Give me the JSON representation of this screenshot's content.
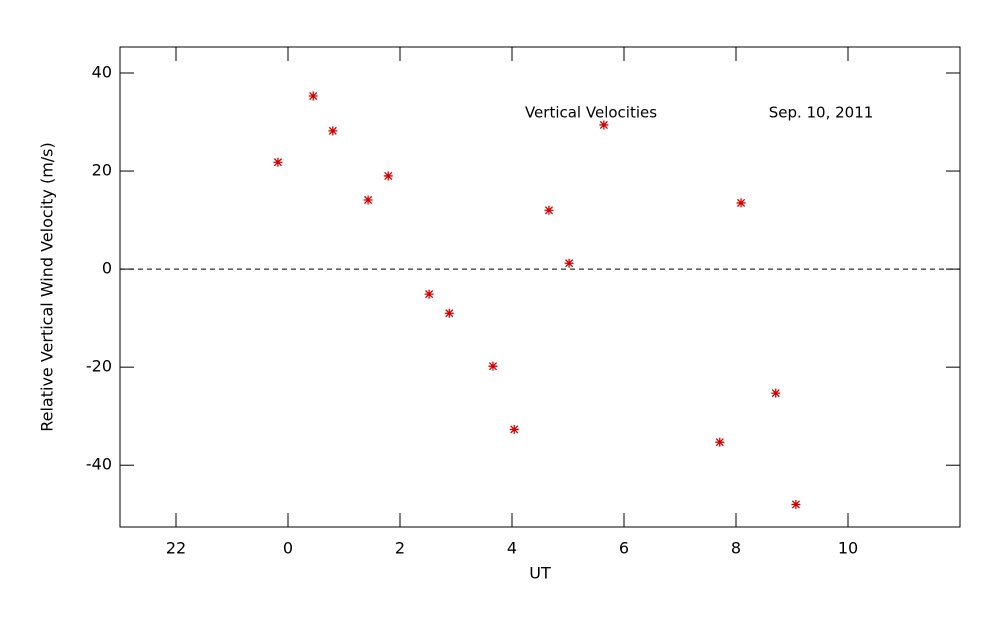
{
  "chart_data": {
    "type": "scatter",
    "annotations": [
      "Vertical Velocities",
      "Sep. 10, 2011"
    ],
    "xlabel": "UT",
    "ylabel": "Relative Vertical Wind Velocity (m/s)",
    "x": [
      -0.18,
      0.45,
      0.8,
      1.43,
      1.79,
      2.52,
      2.88,
      3.66,
      4.04,
      4.66,
      5.02,
      5.64,
      7.71,
      8.09,
      8.71,
      9.07
    ],
    "series": [
      {
        "color": "#d40000",
        "values": [
          21.8,
          35.3,
          28.2,
          14.1,
          19.0,
          -5.1,
          -9.0,
          -19.8,
          -32.7,
          12.0,
          1.2,
          29.4,
          -35.3,
          13.5,
          -25.3,
          -48.0
        ]
      }
    ],
    "hline": 0,
    "xlim": [
      -3,
      12
    ],
    "xticks": [
      {
        "value": -2,
        "label": "22"
      },
      0,
      2,
      4,
      6,
      8,
      10
    ],
    "ylim": [
      -52.6,
      45.3
    ],
    "yticks": [
      -40,
      -20,
      0,
      20,
      40
    ]
  }
}
